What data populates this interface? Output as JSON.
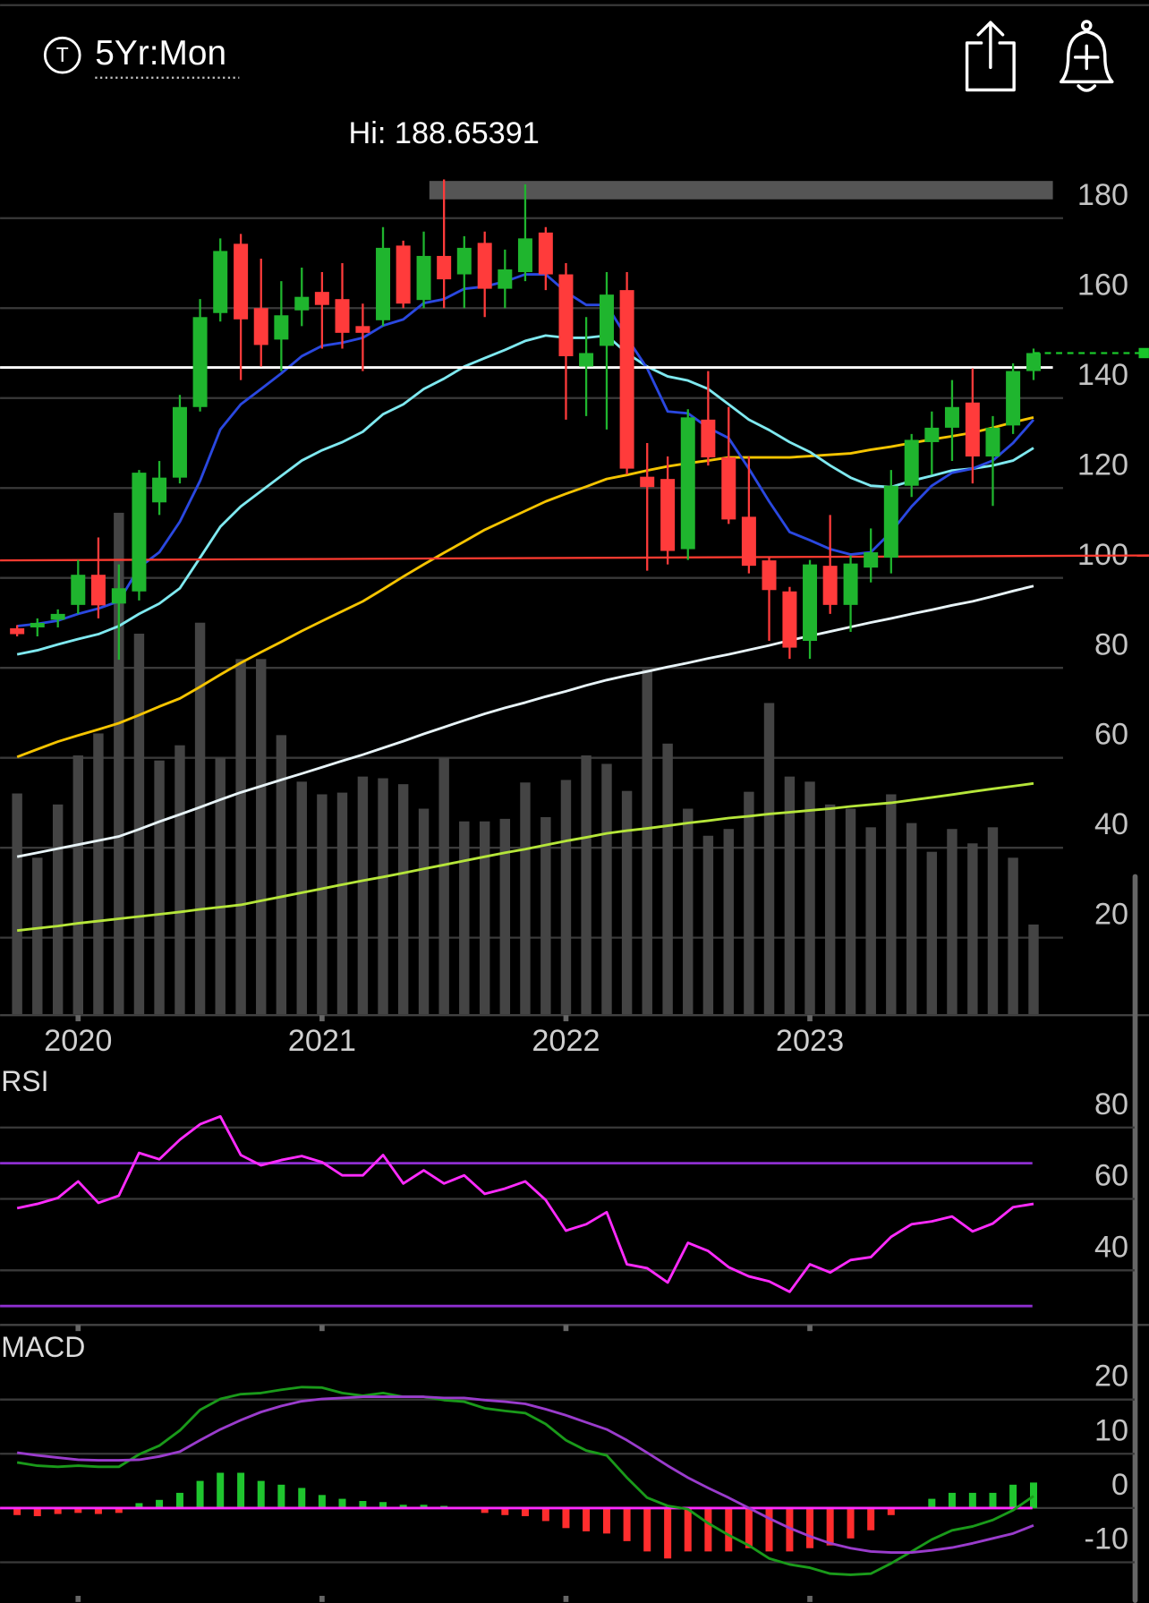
{
  "header": {
    "symbol_icon": "T",
    "range": "5Yr:Mon"
  },
  "chart_data": [
    {
      "type": "candlestick",
      "annotation": "Hi: 188.65391",
      "x": [
        2019.75,
        2019.833,
        2019.917,
        2020,
        2020.083,
        2020.167,
        2020.25,
        2020.333,
        2020.417,
        2020.5,
        2020.583,
        2020.667,
        2020.75,
        2020.833,
        2020.917,
        2021,
        2021.083,
        2021.167,
        2021.25,
        2021.333,
        2021.417,
        2021.5,
        2021.583,
        2021.667,
        2021.75,
        2021.833,
        2021.917,
        2022,
        2022.083,
        2022.167,
        2022.25,
        2022.333,
        2022.417,
        2022.5,
        2022.583,
        2022.667,
        2022.75,
        2022.833,
        2022.917,
        2023,
        2023.083,
        2023.167,
        2023.25,
        2023.333,
        2023.417,
        2023.5,
        2023.583,
        2023.667,
        2023.75,
        2023.833,
        2023.917
      ],
      "xlim": [
        2019.68,
        2024.39
      ],
      "xticks": [
        2020,
        2021,
        2022,
        2023
      ],
      "ylim": [
        3,
        191
      ],
      "yticks": [
        20,
        40,
        60,
        80,
        100,
        120,
        140,
        160,
        180
      ],
      "grid": true,
      "up_color": "#1fb52e",
      "down_color": "#ff3b3b",
      "open": [
        88.8,
        89,
        90.7,
        94,
        100.7,
        94.3,
        97,
        116.8,
        122.3,
        138,
        158.9,
        174.3,
        160,
        153,
        159.5,
        163.6,
        162,
        156,
        157.3,
        173.9,
        161.8,
        171.6,
        167.5,
        174.5,
        164.3,
        168,
        176.8,
        167.5,
        147,
        151.6,
        164,
        122.5,
        122,
        106.4,
        135.2,
        126.8,
        113.6,
        103.9,
        97,
        86,
        102.7,
        94,
        102.3,
        104.5,
        120.5,
        130.2,
        133.4,
        139,
        127,
        133.9,
        146
      ],
      "high": [
        89.5,
        91,
        93,
        104,
        109,
        103,
        124,
        126,
        140.7,
        162,
        175.5,
        176.5,
        171,
        166,
        169,
        168,
        170,
        161,
        178,
        175,
        177,
        188.6,
        176,
        177,
        173,
        187.5,
        178,
        170,
        158,
        168,
        168,
        130,
        127,
        137.5,
        146,
        138,
        127,
        104.7,
        98,
        104,
        114,
        105,
        111,
        124,
        132,
        137,
        144,
        146.6,
        136,
        147.7,
        151
      ],
      "low": [
        87,
        87,
        89,
        92,
        91,
        81.8,
        95,
        114,
        121,
        137,
        157,
        144,
        147,
        146,
        156,
        151,
        151,
        146,
        156,
        160,
        160,
        160,
        160,
        158,
        160,
        166,
        164,
        135.2,
        136,
        133,
        123,
        101.6,
        103,
        104,
        125,
        112,
        101,
        86,
        82,
        82,
        92,
        88,
        99,
        101,
        118,
        123,
        126,
        121,
        116,
        132,
        144
      ],
      "close": [
        87.5,
        90,
        92,
        100.7,
        93.9,
        97.7,
        123.4,
        122.3,
        138,
        158,
        172.7,
        157.5,
        151.8,
        158.4,
        162.5,
        160.7,
        154.5,
        154.5,
        173.4,
        161,
        171.6,
        166.4,
        173.4,
        164.3,
        168.6,
        175.5,
        167.5,
        149.3,
        150,
        163,
        124.3,
        120.2,
        106,
        135.7,
        126.8,
        113,
        102.7,
        97.3,
        84.5,
        103,
        94,
        103.2,
        105.7,
        120.5,
        130.7,
        133.4,
        138,
        127,
        133.4,
        146,
        150
      ],
      "y2lim": [
        0,
        100
      ],
      "volume": {
        "color": "#444444",
        "axis": "y2",
        "values": [
          26.1,
          18.5,
          24.8,
          30.6,
          33.2,
          59.3,
          45,
          30,
          31.8,
          46.3,
          30.3,
          42,
          42,
          33,
          27.5,
          26,
          26.2,
          28.1,
          27.9,
          27.2,
          24.3,
          30.3,
          22.8,
          22.8,
          23.1,
          27.4,
          23.3,
          27.7,
          30.6,
          29.6,
          26.4,
          40.8,
          32,
          24.3,
          21.1,
          21.9,
          26.3,
          36.8,
          28.1,
          27.5,
          24.8,
          24.3,
          22.1,
          26,
          22.6,
          19.2,
          21.9,
          20.2,
          22.1,
          18.5,
          10.6
        ]
      },
      "series": [
        {
          "color": "#b6e63a",
          "values": [
            21.6,
            22.1,
            22.6,
            23.2,
            23.7,
            24.2,
            24.7,
            25.2,
            25.7,
            26.3,
            26.8,
            27.3,
            28.2,
            29.1,
            30,
            30.9,
            31.8,
            32.7,
            33.5,
            34.4,
            35.3,
            36.2,
            37.1,
            38,
            38.9,
            39.7,
            40.6,
            41.5,
            42.3,
            43.2,
            43.8,
            44.3,
            44.9,
            45.5,
            46,
            46.6,
            47,
            47.5,
            47.9,
            48.3,
            48.7,
            49.2,
            49.6,
            50,
            50.6,
            51.2,
            51.8,
            52.5,
            53.1,
            53.7,
            54.3
          ]
        },
        {
          "color": "#e8f4f8",
          "values": [
            38,
            38.9,
            39.8,
            40.7,
            41.6,
            42.5,
            44.1,
            45.8,
            47.4,
            49,
            50.7,
            52.3,
            53.7,
            55.1,
            56.5,
            57.9,
            59.3,
            60.7,
            62.2,
            63.7,
            65.3,
            66.8,
            68.3,
            69.8,
            71.1,
            72.3,
            73.6,
            74.8,
            76.1,
            77.3,
            78.3,
            79.2,
            80.2,
            81.1,
            82.1,
            83,
            84,
            85,
            86.1,
            87.1,
            88.1,
            89.1,
            90.1,
            91,
            92,
            92.9,
            93.9,
            94.8,
            95.9,
            97.1,
            98.2
          ]
        },
        {
          "color": "#f5c400",
          "values": [
            60.2,
            61.9,
            63.6,
            65,
            66.3,
            67.7,
            69.5,
            71.4,
            73.2,
            75.8,
            78.5,
            81.1,
            83.5,
            85.8,
            88.2,
            90.4,
            92.6,
            94.8,
            97.5,
            100.3,
            103,
            105.6,
            108.1,
            110.7,
            112.8,
            114.9,
            117,
            118.7,
            120.3,
            122,
            122.9,
            123.9,
            124.8,
            125.5,
            126.1,
            126.8,
            126.8,
            126.8,
            126.8,
            127.1,
            127.4,
            127.7,
            128.5,
            129.2,
            130,
            130.8,
            131.5,
            132.3,
            133.4,
            134.6,
            135.7
          ]
        },
        {
          "color": "#7fe9f0",
          "values": [
            83,
            83.9,
            85.2,
            86.4,
            87.5,
            89.3,
            92,
            94.3,
            97.7,
            104.5,
            111.4,
            115.9,
            119.3,
            122.7,
            126.1,
            128.4,
            130.2,
            132.5,
            136.4,
            138.6,
            142,
            144.3,
            147,
            148.9,
            150.7,
            152.7,
            153.9,
            153.4,
            153.4,
            153.9,
            150,
            147,
            144.8,
            143.9,
            142,
            138.6,
            135.2,
            132.9,
            130.2,
            128,
            125,
            122.3,
            120.5,
            120.2,
            121.6,
            122.7,
            123.9,
            124.3,
            125,
            126.1,
            128.9
          ]
        },
        {
          "color": "#2a48e0",
          "values": [
            89.3,
            89.8,
            90.5,
            92,
            93.2,
            94.8,
            102.3,
            105.7,
            112.5,
            121.6,
            133,
            138.6,
            142,
            145.5,
            149.3,
            151.6,
            152.3,
            153.4,
            156.1,
            157.5,
            161.1,
            162,
            164.3,
            164.8,
            165.9,
            167.5,
            167.5,
            163.6,
            160.7,
            160.7,
            153.4,
            146.6,
            137,
            136.6,
            133.4,
            131.1,
            124.3,
            117,
            110.2,
            108.4,
            106.4,
            105.2,
            105.7,
            110.2,
            115.9,
            120.5,
            123.4,
            124.3,
            126.1,
            130,
            135.2
          ]
        }
      ],
      "levels": [
        {
          "value": 146.8,
          "color": "#ffffff"
        }
      ],
      "trendline": {
        "color": "#ff3b30",
        "values": [
          103.9,
          105
        ]
      },
      "last_price": {
        "value": 150,
        "color": "#19c52a"
      }
    },
    {
      "type": "line",
      "title": "RSI",
      "ylim": [
        25,
        98
      ],
      "yticks": [
        40,
        60,
        80
      ],
      "grid": true,
      "series": [
        {
          "color": "#ff2bff",
          "values": [
            57.4,
            58.6,
            60.3,
            64.9,
            58.9,
            60.9,
            72.9,
            71.1,
            76.6,
            80.9,
            83.1,
            72.3,
            69.4,
            70.9,
            72,
            70.3,
            66.6,
            66.6,
            72.3,
            64.3,
            68,
            64.3,
            66.6,
            61.4,
            62.9,
            64.9,
            59.7,
            51.1,
            52.9,
            56.3,
            41.7,
            40.6,
            36.6,
            47.7,
            45.4,
            40.9,
            38.3,
            36.9,
            34,
            41.7,
            39.4,
            42.9,
            43.7,
            49.4,
            52.9,
            53.7,
            55.1,
            50.9,
            53.1,
            57.7,
            58.6
          ]
        }
      ],
      "levels": [
        {
          "value": 70,
          "color": "#8e2fd0"
        },
        {
          "value": 30,
          "color": "#8e2fd0"
        }
      ]
    },
    {
      "type": "macd",
      "title": "MACD",
      "ylim": [
        -16,
        33
      ],
      "yticks": [
        -10,
        0,
        10,
        20
      ],
      "grid": true,
      "series": [
        {
          "color": "#1a9a1a",
          "values": [
            8.4,
            7.8,
            7.6,
            7.8,
            7.6,
            7.6,
            9.9,
            11.5,
            14.3,
            18.1,
            20.1,
            21,
            21.2,
            21.8,
            22.3,
            22.2,
            21.2,
            20.7,
            21.2,
            20.5,
            20.5,
            19.9,
            19.6,
            18.4,
            17.9,
            17.5,
            15.5,
            12.5,
            10.6,
            9.7,
            5.6,
            1.9,
            0.4,
            -0.2,
            -2.8,
            -5,
            -6.9,
            -9.3,
            -10.4,
            -11,
            -12.1,
            -12.3,
            -12.1,
            -10.2,
            -8,
            -5.8,
            -4.1,
            -3.4,
            -2.2,
            -0.4,
            2.2
          ]
        },
        {
          "color": "#9a3ccc",
          "values": [
            10.2,
            9.7,
            9.3,
            8.9,
            8.8,
            8.8,
            8.9,
            9.5,
            10.4,
            12.5,
            14.5,
            16.2,
            17.7,
            18.8,
            19.7,
            20.1,
            20.3,
            20.5,
            20.5,
            20.5,
            20.5,
            20.3,
            20.3,
            19.9,
            19.6,
            19.2,
            18.2,
            17.1,
            15.8,
            14.5,
            12.5,
            10.2,
            7.8,
            5.6,
            3.7,
            1.9,
            0,
            -1.9,
            -3.7,
            -5.2,
            -6.5,
            -7.4,
            -8,
            -8.2,
            -8.2,
            -7.8,
            -7.3,
            -6.5,
            -5.6,
            -4.7,
            -3.2
          ]
        }
      ],
      "histogram": {
        "up_color": "#1fc52e",
        "down_color": "#ff2d2d",
        "values": [
          -1.3,
          -1.5,
          -1.1,
          -0.9,
          -1.1,
          -0.9,
          0.9,
          1.5,
          2.8,
          5,
          6.5,
          6.5,
          5,
          4.3,
          3.7,
          2.4,
          1.7,
          1.3,
          1.1,
          0.6,
          0.6,
          0.4,
          0.2,
          -0.9,
          -1.3,
          -1.5,
          -2.4,
          -3.7,
          -4.3,
          -4.7,
          -6.1,
          -8,
          -9.3,
          -8,
          -8,
          -8,
          -7.4,
          -8,
          -8,
          -7.4,
          -6.9,
          -5.6,
          -4.1,
          -1.3,
          -0.2,
          1.7,
          2.8,
          2.8,
          2.8,
          4.3,
          4.7
        ]
      },
      "levels": [
        {
          "value": 0,
          "color": "#ff2bff"
        }
      ]
    }
  ]
}
